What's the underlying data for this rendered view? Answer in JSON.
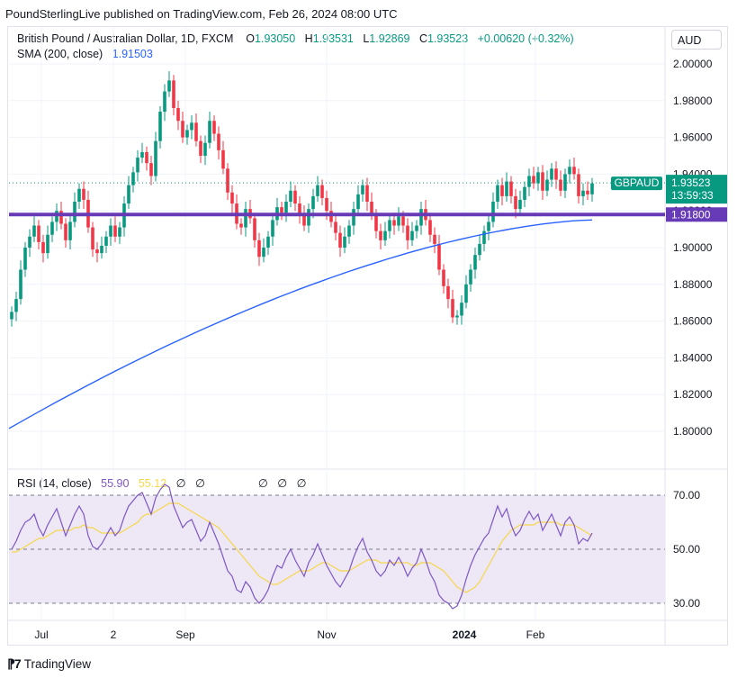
{
  "header": {
    "text": "PoundSterlingLive published on TradingView.com, Feb 26, 2024 08:00 UTC"
  },
  "legend": {
    "symbol": "British Pound / Australian Dollar, 1D, FXCM",
    "o_label": "O",
    "o": "1.93050",
    "h_label": "H",
    "h": "1.93531",
    "l_label": "L",
    "l": "1.92869",
    "c_label": "C",
    "c": "1.93523",
    "change": "+0.00620 (+0.32%)",
    "sma_label": "SMA (200, close)",
    "sma_value": "1.91503"
  },
  "currency": "AUD",
  "price_tags": {
    "ticker": "GBPAUD",
    "last": "1.93523",
    "countdown": "13:59:33",
    "level": "1.91800"
  },
  "rsi_legend": {
    "label": "RSI (14, close)",
    "rsi": "55.90",
    "ma": "55.12",
    "na": [
      "∅",
      "∅",
      "∅",
      "∅",
      "∅"
    ]
  },
  "brand": {
    "name": "TradingView"
  },
  "colors": {
    "up": "#089981",
    "down": "#f23645",
    "sma": "#2962ff",
    "level": "#673ab7",
    "rsi": "#7e57c2",
    "rsi_ma": "#f7d74a",
    "rsi_band": "#ede7f6"
  },
  "chart_data": [
    {
      "type": "candlestick",
      "title": "British Pound / Australian Dollar, 1D, FXCM",
      "y_ticks": [
        "2.00000",
        "1.98000",
        "1.96000",
        "1.94000",
        "1.92000",
        "1.90000",
        "1.88000",
        "1.86000",
        "1.84000",
        "1.82000",
        "1.80000"
      ],
      "x_ticks": [
        "Jul",
        "2",
        "Sep",
        "Nov",
        "2024",
        "Feb"
      ],
      "horizontal_level": 1.918,
      "last_close": 1.93523,
      "closes": [
        1.865,
        1.872,
        1.888,
        1.9,
        1.906,
        1.912,
        1.903,
        1.897,
        1.907,
        1.914,
        1.92,
        1.913,
        1.904,
        1.914,
        1.925,
        1.932,
        1.926,
        1.911,
        1.899,
        1.897,
        1.901,
        1.906,
        1.912,
        1.906,
        1.911,
        1.924,
        1.934,
        1.941,
        1.949,
        1.952,
        1.946,
        1.939,
        1.958,
        1.974,
        1.985,
        1.991,
        1.976,
        1.969,
        1.96,
        1.964,
        1.968,
        1.958,
        1.95,
        1.957,
        1.969,
        1.962,
        1.953,
        1.943,
        1.93,
        1.924,
        1.913,
        1.911,
        1.921,
        1.916,
        1.904,
        1.895,
        1.9,
        1.906,
        1.915,
        1.922,
        1.919,
        1.925,
        1.931,
        1.924,
        1.918,
        1.912,
        1.921,
        1.928,
        1.934,
        1.927,
        1.92,
        1.914,
        1.908,
        1.9,
        1.906,
        1.912,
        1.921,
        1.929,
        1.934,
        1.925,
        1.918,
        1.909,
        1.904,
        1.909,
        1.915,
        1.912,
        1.917,
        1.912,
        1.904,
        1.909,
        1.912,
        1.921,
        1.915,
        1.907,
        1.902,
        1.888,
        1.879,
        1.872,
        1.862,
        1.863,
        1.87,
        1.88,
        1.888,
        1.896,
        1.902,
        1.909,
        1.914,
        1.925,
        1.934,
        1.928,
        1.936,
        1.928,
        1.921,
        1.926,
        1.933,
        1.939,
        1.935,
        1.941,
        1.931,
        1.937,
        1.943,
        1.937,
        1.931,
        1.94,
        1.944,
        1.94,
        1.928,
        1.931,
        1.929,
        1.935
      ],
      "sma200": {
        "start": 1.8015,
        "end": 1.91503
      },
      "ylim": [
        1.75,
        2.01
      ]
    },
    {
      "type": "line",
      "title": "RSI (14, close)",
      "y_ticks": [
        "70.00",
        "50.00",
        "30.00"
      ],
      "band": [
        30,
        70
      ],
      "series": [
        {
          "name": "RSI",
          "values": [
            50,
            53,
            57,
            60,
            61,
            63,
            58,
            55,
            59,
            62,
            65,
            60,
            55,
            59,
            63,
            66,
            63,
            55,
            51,
            50,
            52,
            55,
            58,
            55,
            57,
            62,
            66,
            68,
            70,
            71,
            67,
            63,
            69,
            72,
            74,
            73,
            66,
            62,
            58,
            60,
            61,
            57,
            53,
            55,
            60,
            56,
            52,
            47,
            42,
            40,
            35,
            34,
            38,
            36,
            32,
            30,
            32,
            35,
            40,
            44,
            43,
            47,
            50,
            46,
            43,
            40,
            45,
            48,
            52,
            48,
            44,
            41,
            38,
            36,
            39,
            42,
            47,
            51,
            54,
            49,
            46,
            42,
            40,
            42,
            46,
            44,
            47,
            44,
            40,
            43,
            45,
            50,
            46,
            41,
            38,
            33,
            31,
            30,
            28,
            29,
            33,
            39,
            44,
            48,
            51,
            54,
            56,
            61,
            66,
            62,
            65,
            59,
            55,
            57,
            61,
            64,
            61,
            63,
            57,
            60,
            63,
            59,
            55,
            60,
            62,
            59,
            52,
            54,
            53,
            56
          ]
        },
        {
          "name": "RSI MA",
          "values": [
            49,
            49,
            50,
            51,
            52,
            53,
            54,
            54,
            55,
            56,
            57,
            57,
            57,
            57,
            58,
            58,
            59,
            58,
            58,
            57,
            56,
            56,
            56,
            56,
            56,
            57,
            58,
            59,
            60,
            62,
            63,
            63,
            64,
            65,
            66,
            67,
            67,
            67,
            66,
            65,
            64,
            63,
            62,
            61,
            60,
            59,
            58,
            56,
            54,
            52,
            50,
            48,
            46,
            44,
            42,
            40,
            39,
            38,
            37,
            37,
            38,
            39,
            40,
            41,
            42,
            42,
            42,
            43,
            44,
            45,
            45,
            44,
            43,
            42,
            42,
            42,
            43,
            44,
            45,
            46,
            46,
            46,
            45,
            45,
            45,
            45,
            45,
            45,
            45,
            44,
            44,
            45,
            45,
            45,
            44,
            43,
            42,
            40,
            38,
            36,
            35,
            34,
            35,
            36,
            38,
            41,
            44,
            47,
            50,
            53,
            55,
            57,
            58,
            59,
            59,
            59,
            59,
            60,
            60,
            60,
            60,
            60,
            59,
            59,
            59,
            59,
            58,
            57,
            56,
            55
          ]
        }
      ],
      "ylim": [
        25,
        75
      ]
    }
  ]
}
